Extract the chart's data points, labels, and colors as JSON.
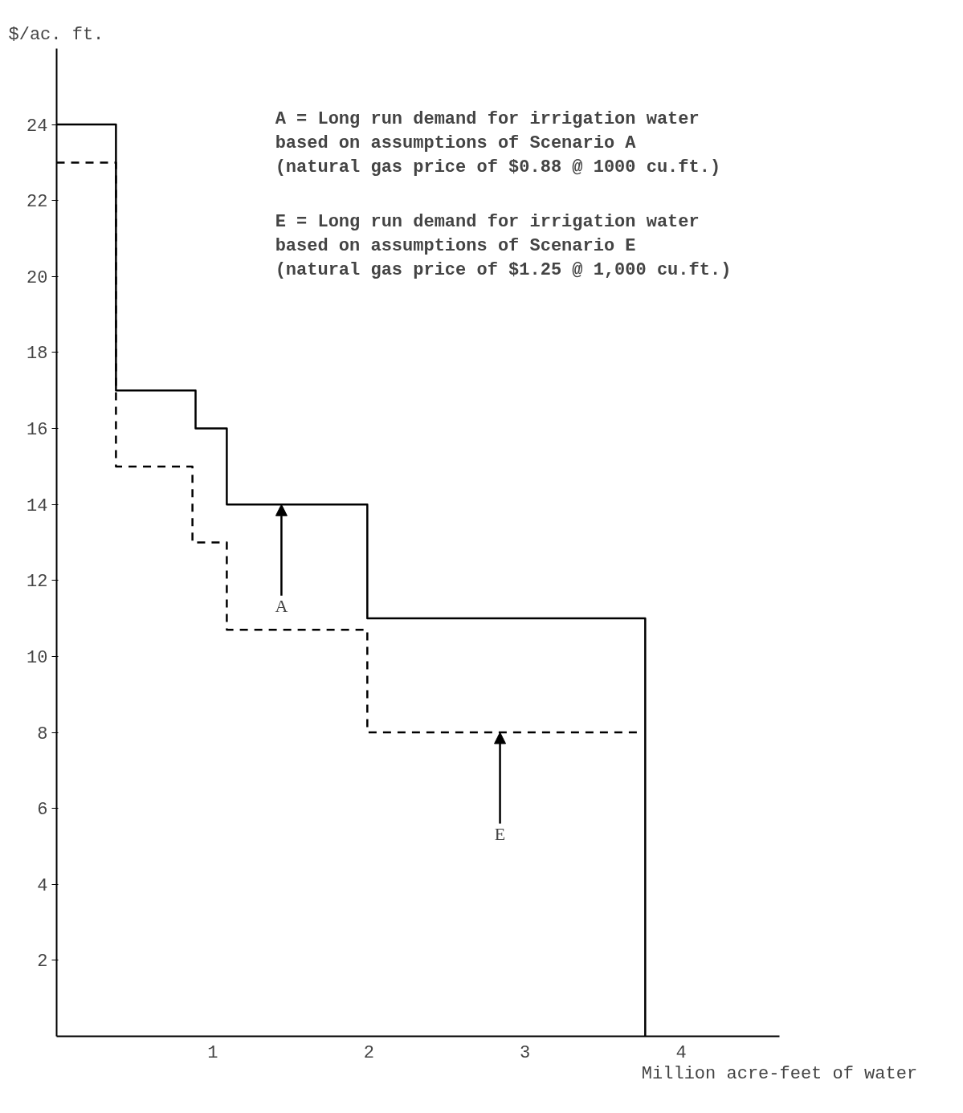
{
  "chart_data": {
    "type": "step",
    "xlabel": "Million acre-feet of water",
    "ylabel": "$/ac. ft.",
    "xlim": [
      0,
      4.63
    ],
    "ylim": [
      0,
      26
    ],
    "xticks": [
      1,
      2,
      3,
      4
    ],
    "yticks": [
      2,
      4,
      6,
      8,
      10,
      12,
      14,
      16,
      18,
      20,
      22,
      24
    ],
    "grid": false,
    "marker": "none",
    "series": [
      {
        "color": "#000000",
        "line_style": "solid",
        "x": [
          0,
          0.38,
          0.89,
          1.09,
          1.99,
          3.77
        ],
        "values": [
          24,
          17,
          16,
          14,
          11,
          0
        ]
      },
      {
        "color": "#000000",
        "line_style": "dashed",
        "x": [
          0,
          0.38,
          0.87,
          1.09,
          1.99,
          3.72
        ],
        "values": [
          23,
          15,
          13,
          10.7,
          8,
          8
        ]
      }
    ],
    "annotations": [
      "A = Long run demand for irrigation water\n    based on assumptions of Scenario A\n    (natural gas price of $0.88 @ 1000 cu.ft.)",
      "E = Long run demand for irrigation water\n    based on assumptions of Scenario E\n    (natural gas price of $1.25 @ 1,000 cu.ft.)",
      {
        "text": "A",
        "x": 1.44,
        "y": 14
      },
      {
        "text": "E",
        "x": 2.84,
        "y": 8
      }
    ]
  }
}
